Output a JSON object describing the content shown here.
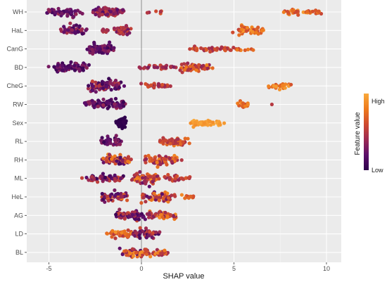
{
  "chart_data": {
    "type": "scatter",
    "subtype": "beeswarm",
    "xlabel": "SHAP value",
    "xlim": [
      -6.2,
      10.8
    ],
    "x_ticks": [
      -5,
      0,
      5,
      10
    ],
    "grid": true,
    "legend_placement": "right",
    "colorbar": {
      "title": "Feature value",
      "high_label": "High",
      "low_label": "Low",
      "colors": [
        "#2d004b",
        "#5c0f6b",
        "#9c2a52",
        "#cf4a2f",
        "#ee7a1d",
        "#f9a93b"
      ]
    },
    "features": [
      {
        "name": "WH",
        "clusters": [
          {
            "center": -4.2,
            "width": 1.1,
            "n": 60,
            "color": [
              0.1,
              0.4
            ],
            "spread": 0.35
          },
          {
            "center": -1.8,
            "width": 0.9,
            "n": 110,
            "color": [
              0.15,
              0.55
            ],
            "spread": 0.42
          },
          {
            "center": 0.8,
            "width": 0.9,
            "n": 6,
            "color": [
              0.4,
              0.65
            ],
            "spread": 0.15
          },
          {
            "center": 8.7,
            "width": 1.2,
            "n": 40,
            "color": [
              0.55,
              0.95
            ],
            "spread": 0.25
          }
        ]
      },
      {
        "name": "HaL",
        "clusters": [
          {
            "center": -3.7,
            "width": 0.8,
            "n": 45,
            "color": [
              0.1,
              0.45
            ],
            "spread": 0.38
          },
          {
            "center": -1.9,
            "width": 0.3,
            "n": 8,
            "color": [
              0.3,
              0.55
            ],
            "spread": 0.3
          },
          {
            "center": -1.0,
            "width": 0.5,
            "n": 40,
            "color": [
              0.25,
              0.6
            ],
            "spread": 0.38
          },
          {
            "center": 5.8,
            "width": 0.9,
            "n": 55,
            "color": [
              0.55,
              0.95
            ],
            "spread": 0.4
          }
        ]
      },
      {
        "name": "CanG",
        "clusters": [
          {
            "center": -2.2,
            "width": 0.8,
            "n": 85,
            "color": [
              0.05,
              0.35
            ],
            "spread": 0.42
          },
          {
            "center": 3.8,
            "width": 1.4,
            "n": 40,
            "color": [
              0.4,
              0.7
            ],
            "spread": 0.2
          },
          {
            "center": 5.6,
            "width": 0.7,
            "n": 10,
            "color": [
              0.55,
              0.95
            ],
            "spread": 0.15
          }
        ]
      },
      {
        "name": "BD",
        "clusters": [
          {
            "center": -3.9,
            "width": 1.2,
            "n": 70,
            "color": [
              0.05,
              0.35
            ],
            "spread": 0.4
          },
          {
            "center": 0.8,
            "width": 1.3,
            "n": 30,
            "color": [
              0.3,
              0.6
            ],
            "spread": 0.2
          },
          {
            "center": 3.0,
            "width": 1.0,
            "n": 55,
            "color": [
              0.35,
              0.85
            ],
            "spread": 0.4
          }
        ]
      },
      {
        "name": "CheG",
        "clusters": [
          {
            "center": -2.0,
            "width": 1.2,
            "n": 90,
            "color": [
              0.05,
              0.55
            ],
            "spread": 0.42
          },
          {
            "center": 0.8,
            "width": 1.0,
            "n": 30,
            "color": [
              0.35,
              0.65
            ],
            "spread": 0.25
          },
          {
            "center": 7.6,
            "width": 0.8,
            "n": 25,
            "color": [
              0.55,
              0.95
            ],
            "spread": 0.28
          }
        ]
      },
      {
        "name": "RW",
        "clusters": [
          {
            "center": -1.9,
            "width": 1.2,
            "n": 85,
            "color": [
              0.05,
              0.4
            ],
            "spread": 0.42
          },
          {
            "center": 5.5,
            "width": 0.4,
            "n": 16,
            "color": [
              0.6,
              0.92
            ],
            "spread": 0.28
          },
          {
            "center": 7.0,
            "width": 0.1,
            "n": 1,
            "color": [
              0.5,
              0.5
            ],
            "spread": 0.0
          }
        ]
      },
      {
        "name": "Sex",
        "clusters": [
          {
            "center": -1.1,
            "width": 0.3,
            "n": 60,
            "color": [
              0.0,
              0.04
            ],
            "spread": 0.44
          },
          {
            "center": 3.6,
            "width": 1.1,
            "n": 45,
            "color": [
              0.88,
              1.0
            ],
            "spread": 0.22
          }
        ]
      },
      {
        "name": "RL",
        "clusters": [
          {
            "center": -1.7,
            "width": 0.7,
            "n": 45,
            "color": [
              0.05,
              0.35
            ],
            "spread": 0.4
          },
          {
            "center": 1.8,
            "width": 0.9,
            "n": 50,
            "color": [
              0.35,
              0.8
            ],
            "spread": 0.4
          }
        ]
      },
      {
        "name": "RH",
        "clusters": [
          {
            "center": -1.3,
            "width": 0.9,
            "n": 75,
            "color": [
              0.1,
              0.9
            ],
            "spread": 0.42
          },
          {
            "center": 1.2,
            "width": 1.1,
            "n": 70,
            "color": [
              0.3,
              0.85
            ],
            "spread": 0.42
          }
        ]
      },
      {
        "name": "ML",
        "clusters": [
          {
            "center": -2.0,
            "width": 1.3,
            "n": 55,
            "color": [
              0.05,
              0.6
            ],
            "spread": 0.3
          },
          {
            "center": 0.2,
            "width": 0.8,
            "n": 70,
            "color": [
              0.2,
              0.9
            ],
            "spread": 0.42
          },
          {
            "center": 1.8,
            "width": 1.0,
            "n": 30,
            "color": [
              0.3,
              0.7
            ],
            "spread": 0.3
          }
        ]
      },
      {
        "name": "HeL",
        "clusters": [
          {
            "center": -1.5,
            "width": 0.9,
            "n": 60,
            "color": [
              0.1,
              0.8
            ],
            "spread": 0.42
          },
          {
            "center": 0.9,
            "width": 1.0,
            "n": 60,
            "color": [
              0.15,
              0.9
            ],
            "spread": 0.42
          },
          {
            "center": 2.6,
            "width": 0.5,
            "n": 12,
            "color": [
              0.6,
              0.95
            ],
            "spread": 0.2
          }
        ]
      },
      {
        "name": "AG",
        "clusters": [
          {
            "center": -0.6,
            "width": 0.9,
            "n": 75,
            "color": [
              0.05,
              0.6
            ],
            "spread": 0.42
          },
          {
            "center": 1.0,
            "width": 1.0,
            "n": 55,
            "color": [
              0.2,
              0.9
            ],
            "spread": 0.38
          }
        ]
      },
      {
        "name": "LD",
        "clusters": [
          {
            "center": -1.2,
            "width": 0.9,
            "n": 45,
            "color": [
              0.45,
              0.95
            ],
            "spread": 0.32
          },
          {
            "center": 0.2,
            "width": 0.8,
            "n": 55,
            "color": [
              0.05,
              0.6
            ],
            "spread": 0.42
          }
        ]
      },
      {
        "name": "BL",
        "clusters": [
          {
            "center": -0.3,
            "width": 1.0,
            "n": 50,
            "color": [
              0.1,
              0.9
            ],
            "spread": 0.4
          },
          {
            "center": 0.9,
            "width": 0.8,
            "n": 30,
            "color": [
              0.4,
              0.95
            ],
            "spread": 0.35
          }
        ]
      }
    ]
  }
}
